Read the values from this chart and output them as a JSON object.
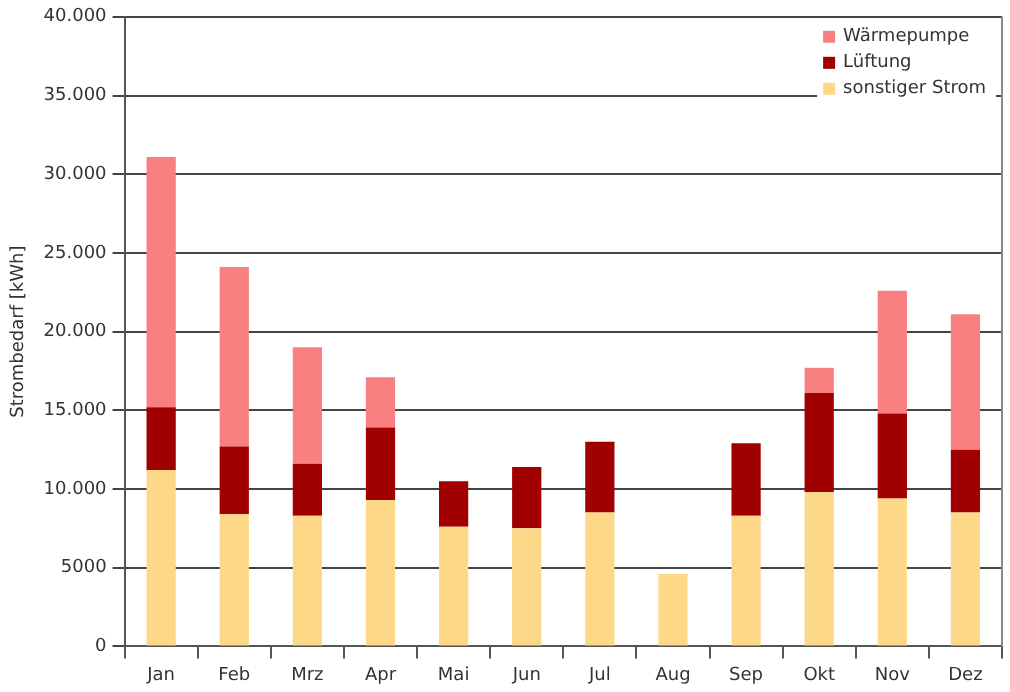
{
  "chart_data": {
    "type": "bar",
    "stacked": true,
    "ylabel": "Strombedarf [kWh]",
    "categories": [
      "Jan",
      "Feb",
      "Mrz",
      "Apr",
      "Mai",
      "Jun",
      "Jul",
      "Aug",
      "Sep",
      "Okt",
      "Nov",
      "Dez"
    ],
    "series": [
      {
        "name": "sonstiger Strom",
        "color": "#fdd888",
        "values": [
          11200,
          8400,
          8300,
          9300,
          7600,
          7500,
          8500,
          4600,
          8300,
          9800,
          9400,
          8500
        ]
      },
      {
        "name": "Lüftung",
        "color": "#a00000",
        "values": [
          4000,
          4300,
          3300,
          4600,
          2900,
          3900,
          4500,
          null,
          4600,
          6300,
          5400,
          4000
        ]
      },
      {
        "name": "Wärmepumpe",
        "color": "#f88080",
        "values": [
          15900,
          11400,
          7400,
          3200,
          null,
          null,
          null,
          null,
          null,
          1600,
          7800,
          8600
        ]
      }
    ],
    "ylim": [
      0,
      40000
    ],
    "yticks": [
      0,
      5000,
      {
        "value": 10000,
        "label": "10.000"
      },
      {
        "value": 15000,
        "label": "15.000"
      },
      {
        "value": 20000,
        "label": "20.000"
      },
      {
        "value": 25000,
        "label": "25.000"
      },
      {
        "value": 30000,
        "label": "30.000"
      },
      {
        "value": 35000,
        "label": "35.000"
      },
      {
        "value": 40000,
        "label": "40.000"
      }
    ],
    "grid": "y",
    "legend": "top right"
  }
}
